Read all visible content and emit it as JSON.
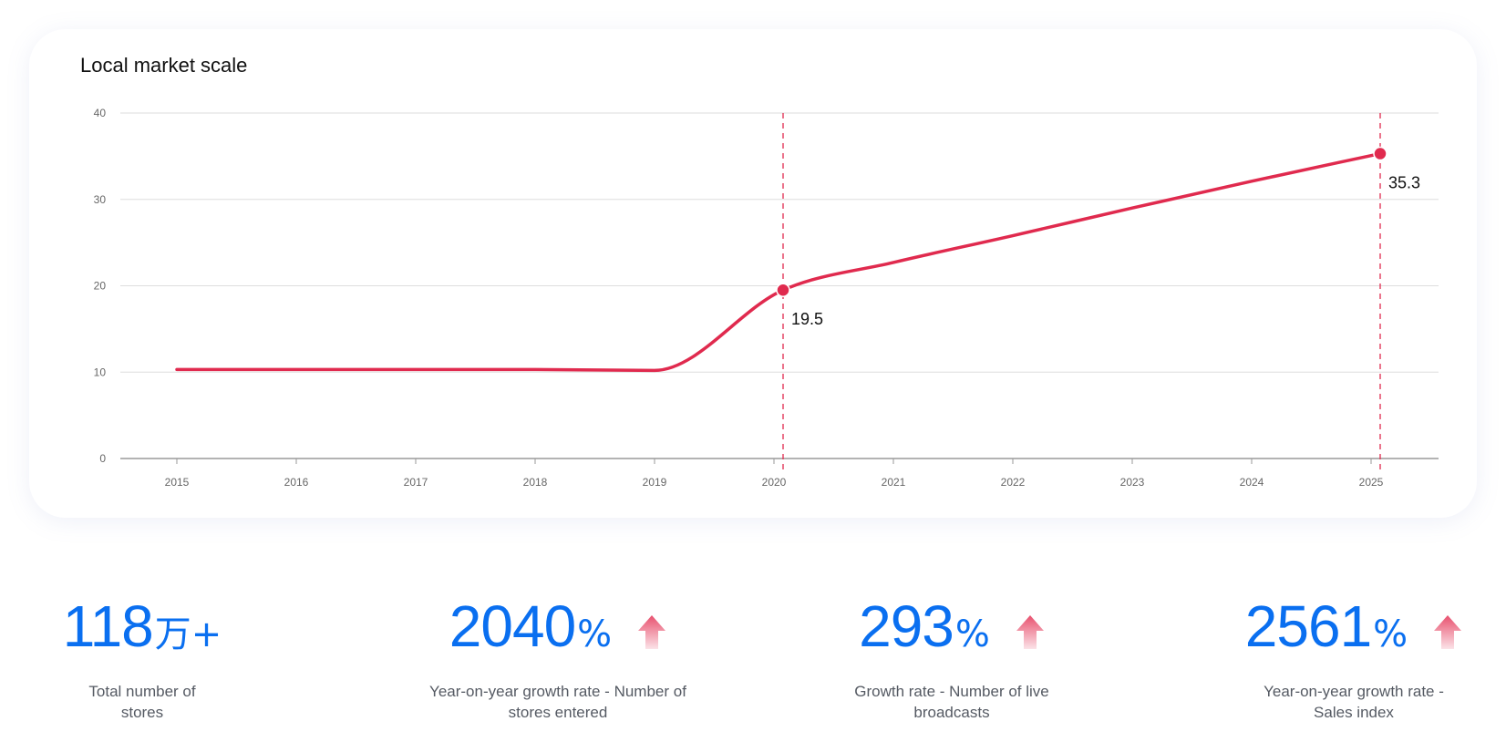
{
  "title": "Local market scale",
  "colors": {
    "line": "#e02a4e",
    "accent": "#0a6ff0",
    "grid": "#dedede",
    "axis_label": "#666666"
  },
  "chart_data": {
    "type": "line",
    "title": "Local market scale",
    "xlabel": "",
    "ylabel": "",
    "categories": [
      "2015",
      "2016",
      "2017",
      "2018",
      "2019",
      "2020",
      "2021",
      "2022",
      "2023",
      "2024",
      "2025"
    ],
    "y_ticks": [
      "0",
      "10",
      "20",
      "30",
      "40"
    ],
    "ylim": [
      0,
      40
    ],
    "grid": true,
    "legend": "none",
    "series": [
      {
        "values": [
          10.3,
          10.3,
          10.3,
          10.3,
          10.2,
          19.5,
          22.7,
          25.8,
          29.0,
          32.1,
          35.3
        ]
      }
    ],
    "highlights": [
      {
        "x": "2020",
        "value": 19.5,
        "label": "19.5"
      },
      {
        "x": "2025",
        "value": 35.3,
        "label": "35.3"
      }
    ]
  },
  "stats": [
    {
      "number": "118",
      "unit": "万+",
      "arrow": false,
      "label_lines": [
        "Total number of",
        "stores"
      ]
    },
    {
      "number": "2040",
      "unit": "%",
      "arrow": true,
      "label_lines": [
        "Year-on-year growth rate - Number of",
        "stores entered"
      ]
    },
    {
      "number": "293",
      "unit": "%",
      "arrow": true,
      "label_lines": [
        "Growth rate - Number of live",
        "broadcasts"
      ]
    },
    {
      "number": "2561",
      "unit": "%",
      "arrow": true,
      "label_lines": [
        "Year-on-year growth rate -",
        "Sales index"
      ]
    }
  ]
}
